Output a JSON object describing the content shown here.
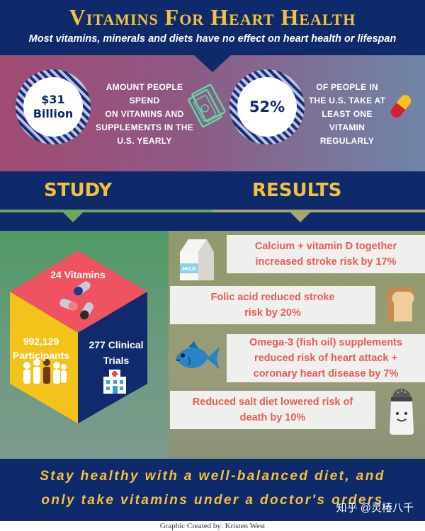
{
  "header": {
    "title": "Vitamins For Heart Health",
    "subtitle": "Most vitamins, minerals and diets have no effect on heart health or lifespan"
  },
  "stats": {
    "spend": {
      "value_line1": "$31",
      "value_line2": "Billion",
      "text_lines": [
        "Amount people spend",
        "on vitamins and",
        "supplements in the",
        "U.S. yearly"
      ]
    },
    "take": {
      "value": "52%",
      "text_lines": [
        "of people in",
        "the U.S. take at",
        "least one",
        "Vitamin",
        "regularly"
      ]
    }
  },
  "sections": {
    "study": "STUDY",
    "results": "RESULTS"
  },
  "study": {
    "vitamins": "24 Vitamins",
    "participants_line1": "992,129",
    "participants_line2": "Participants",
    "trials_line1": "277 Clinical",
    "trials_line2": "Trials"
  },
  "results": [
    {
      "line1": "Calcium + vitamin D together",
      "line2": "increased stroke risk by 17%"
    },
    {
      "line1": "Folic acid reduced stroke",
      "line2": "risk by 20%"
    },
    {
      "line1": "Omega-3 (fish oil) supplements",
      "line2": "reduced risk of heart attack +",
      "line3": "coronary heart disease by 7%"
    },
    {
      "line1": "Reduced salt diet lowered risk of",
      "line2": "death by 10%"
    }
  ],
  "icons": {
    "milk_label": "MILK"
  },
  "footer": {
    "line1": "Stay healthy with a well-balanced diet, and",
    "line2": "only take vitamins under a doctor's orders",
    "watermark": "知乎 @灵椿八千",
    "credit": "Graphic Created by: Kristen West"
  },
  "colors": {
    "navy": "#0f2a6b",
    "gold": "#f4c23a",
    "coral": "#e85c55"
  }
}
